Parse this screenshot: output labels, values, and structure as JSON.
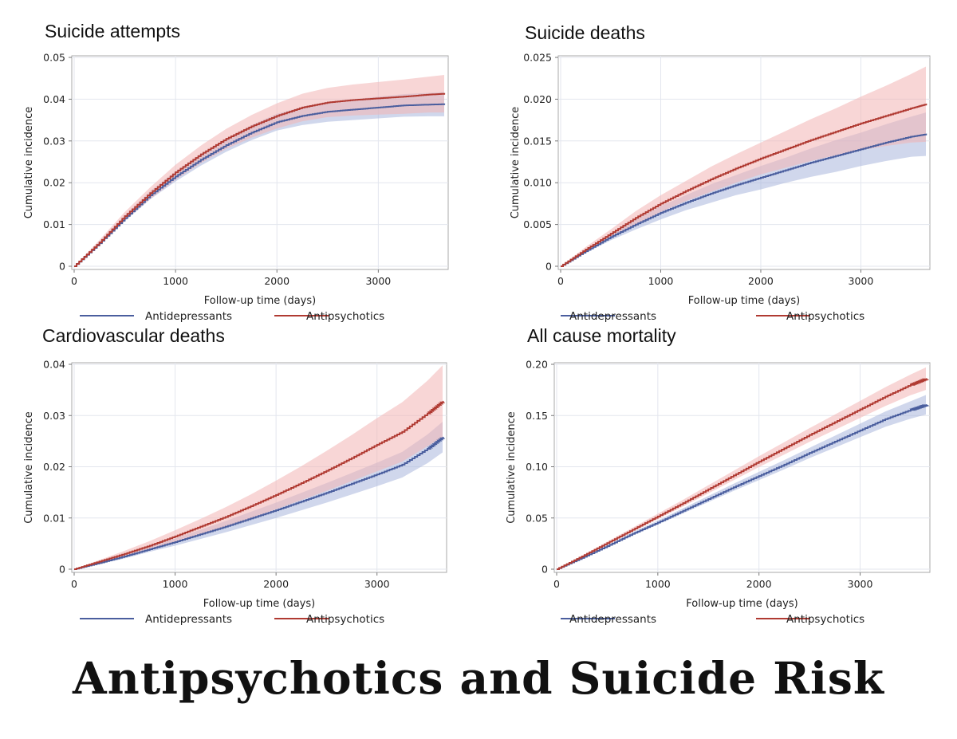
{
  "banner": "Antipsychotics and Suicide Risk",
  "colors": {
    "antidepressants": "#4a5e9e",
    "antipsychotics": "#b03a32",
    "band_blue": "#aab6dd",
    "band_red": "#f2b5b5",
    "grid": "#e3e6ee",
    "axis": "#aaaaaa"
  },
  "chart_data": [
    {
      "type": "line",
      "title": "Suicide attempts",
      "xlabel": "Follow-up time (days)",
      "ylabel": "Cumulative incidence",
      "xlim": [
        0,
        3650
      ],
      "ylim": [
        0,
        0.05
      ],
      "xticks": [
        "0",
        "1000",
        "2000",
        "3000"
      ],
      "yticks": [
        "0",
        "0.01",
        "0.02",
        "0.03",
        "0.04",
        "0.05"
      ],
      "legend_position": "bottom",
      "grid": true,
      "series": [
        {
          "name": "Antidepressants",
          "x": [
            0,
            250,
            500,
            750,
            1000,
            1250,
            1500,
            1750,
            2000,
            2250,
            2500,
            2750,
            3000,
            3250,
            3500,
            3650
          ],
          "y": [
            0,
            0.0055,
            0.0115,
            0.017,
            0.0215,
            0.0255,
            0.029,
            0.032,
            0.0345,
            0.036,
            0.037,
            0.0375,
            0.038,
            0.0385,
            0.0387,
            0.0388
          ],
          "ci_half": [
            0,
            0.0004,
            0.0007,
            0.001,
            0.0012,
            0.0014,
            0.0016,
            0.0018,
            0.002,
            0.0022,
            0.0024,
            0.0025,
            0.0026,
            0.0027,
            0.0028,
            0.0029
          ]
        },
        {
          "name": "Antipsychotics",
          "x": [
            0,
            250,
            500,
            750,
            1000,
            1250,
            1500,
            1750,
            2000,
            2250,
            2500,
            2750,
            3000,
            3250,
            3500,
            3650
          ],
          "y": [
            0,
            0.0057,
            0.012,
            0.0175,
            0.0225,
            0.0268,
            0.0305,
            0.0335,
            0.036,
            0.038,
            0.0392,
            0.0398,
            0.0402,
            0.0406,
            0.0411,
            0.0413
          ],
          "ci_half": [
            0,
            0.0006,
            0.001,
            0.0014,
            0.0018,
            0.0021,
            0.0024,
            0.0027,
            0.003,
            0.0033,
            0.0035,
            0.0037,
            0.0039,
            0.0041,
            0.0043,
            0.0045
          ]
        }
      ]
    },
    {
      "type": "line",
      "title": "Suicide deaths",
      "xlabel": "Follow-up time (days)",
      "ylabel": "Cumulative incidence",
      "xlim": [
        0,
        3650
      ],
      "ylim": [
        0,
        0.025
      ],
      "xticks": [
        "0",
        "1000",
        "2000",
        "3000"
      ],
      "yticks": [
        "0",
        "0.005",
        "0.010",
        "0.015",
        "0.020",
        "0.025"
      ],
      "legend_position": "bottom",
      "grid": true,
      "series": [
        {
          "name": "Antidepressants",
          "x": [
            0,
            250,
            500,
            750,
            1000,
            1250,
            1500,
            1750,
            2000,
            2250,
            2500,
            2750,
            3000,
            3250,
            3500,
            3650
          ],
          "y": [
            0,
            0.0018,
            0.0035,
            0.005,
            0.0064,
            0.0076,
            0.0087,
            0.0097,
            0.0106,
            0.0115,
            0.0124,
            0.0132,
            0.014,
            0.0148,
            0.0155,
            0.0158
          ],
          "ci_half": [
            0,
            0.0002,
            0.0004,
            0.0006,
            0.0008,
            0.0009,
            0.0011,
            0.0012,
            0.0014,
            0.0015,
            0.0017,
            0.0019,
            0.002,
            0.0022,
            0.0024,
            0.0026
          ]
        },
        {
          "name": "Antipsychotics",
          "x": [
            0,
            250,
            500,
            750,
            1000,
            1250,
            1500,
            1750,
            2000,
            2250,
            2500,
            2750,
            3000,
            3250,
            3500,
            3650
          ],
          "y": [
            0,
            0.002,
            0.0039,
            0.0058,
            0.0075,
            0.009,
            0.0104,
            0.0117,
            0.0129,
            0.014,
            0.0151,
            0.0161,
            0.0171,
            0.018,
            0.0189,
            0.0194
          ],
          "ci_half": [
            0,
            0.0003,
            0.0005,
            0.0008,
            0.001,
            0.0012,
            0.0015,
            0.0017,
            0.0019,
            0.0022,
            0.0025,
            0.0028,
            0.0032,
            0.0036,
            0.0041,
            0.0045
          ]
        }
      ]
    },
    {
      "type": "line",
      "title": "Cardiovascular deaths",
      "xlabel": "Follow-up time (days)",
      "ylabel": "Cumulative incidence",
      "xlim": [
        0,
        3650
      ],
      "ylim": [
        0,
        0.04
      ],
      "xticks": [
        "0",
        "1000",
        "2000",
        "3000"
      ],
      "yticks": [
        "0",
        "0.01",
        "0.02",
        "0.03",
        "0.04"
      ],
      "legend_position": "bottom",
      "grid": true,
      "series": [
        {
          "name": "Antidepressants",
          "x": [
            0,
            250,
            500,
            750,
            1000,
            1250,
            1500,
            1750,
            2000,
            2250,
            2500,
            2750,
            3000,
            3250,
            3500,
            3650
          ],
          "y": [
            0,
            0.0012,
            0.0025,
            0.0039,
            0.0053,
            0.0068,
            0.0083,
            0.0099,
            0.0115,
            0.0132,
            0.0149,
            0.0167,
            0.0185,
            0.0204,
            0.0235,
            0.0258
          ],
          "ci_half": [
            0,
            0.0002,
            0.0004,
            0.0005,
            0.0007,
            0.0009,
            0.0011,
            0.0013,
            0.0015,
            0.0017,
            0.0019,
            0.0021,
            0.0023,
            0.0025,
            0.0028,
            0.003
          ]
        },
        {
          "name": "Antipsychotics",
          "x": [
            0,
            250,
            500,
            750,
            1000,
            1250,
            1500,
            1750,
            2000,
            2250,
            2500,
            2750,
            3000,
            3250,
            3500,
            3650
          ],
          "y": [
            0,
            0.0015,
            0.003,
            0.0046,
            0.0064,
            0.0083,
            0.0102,
            0.0123,
            0.0145,
            0.0168,
            0.0192,
            0.0217,
            0.0243,
            0.0268,
            0.0304,
            0.0328
          ],
          "ci_half": [
            0,
            0.0003,
            0.0006,
            0.0009,
            0.0012,
            0.0015,
            0.0019,
            0.0023,
            0.0028,
            0.0033,
            0.0039,
            0.0045,
            0.0052,
            0.0058,
            0.0064,
            0.007
          ]
        }
      ]
    },
    {
      "type": "line",
      "title": "All cause mortality",
      "xlabel": "Follow-up time (days)",
      "ylabel": "Cumulative incidence",
      "xlim": [
        0,
        3650
      ],
      "ylim": [
        0,
        0.2
      ],
      "xticks": [
        "0",
        "1000",
        "2000",
        "3000"
      ],
      "yticks": [
        "0",
        "0.05",
        "0.10",
        "0.15",
        "0.20"
      ],
      "legend_position": "bottom",
      "grid": true,
      "series": [
        {
          "name": "Antidepressants",
          "x": [
            0,
            250,
            500,
            750,
            1000,
            1250,
            1500,
            1750,
            2000,
            2250,
            2500,
            2750,
            3000,
            3250,
            3500,
            3650
          ],
          "y": [
            0,
            0.011,
            0.0225,
            0.0345,
            0.0455,
            0.057,
            0.0685,
            0.08,
            0.091,
            0.102,
            0.1135,
            0.1245,
            0.1355,
            0.1465,
            0.1555,
            0.1605
          ],
          "ci_half": [
            0,
            0.0005,
            0.001,
            0.0015,
            0.002,
            0.0025,
            0.003,
            0.0035,
            0.004,
            0.0045,
            0.005,
            0.0058,
            0.0066,
            0.0075,
            0.0085,
            0.0095
          ]
        },
        {
          "name": "Antipsychotics",
          "x": [
            0,
            250,
            500,
            750,
            1000,
            1250,
            1500,
            1750,
            2000,
            2250,
            2500,
            2750,
            3000,
            3250,
            3500,
            3650
          ],
          "y": [
            0,
            0.0125,
            0.0255,
            0.0385,
            0.0515,
            0.0645,
            0.078,
            0.0915,
            0.105,
            0.118,
            0.131,
            0.1435,
            0.156,
            0.1685,
            0.18,
            0.186
          ],
          "ci_half": [
            0,
            0.0007,
            0.0014,
            0.002,
            0.0027,
            0.0033,
            0.004,
            0.0046,
            0.0053,
            0.006,
            0.0067,
            0.0075,
            0.0083,
            0.0092,
            0.0101,
            0.011
          ]
        }
      ]
    }
  ]
}
